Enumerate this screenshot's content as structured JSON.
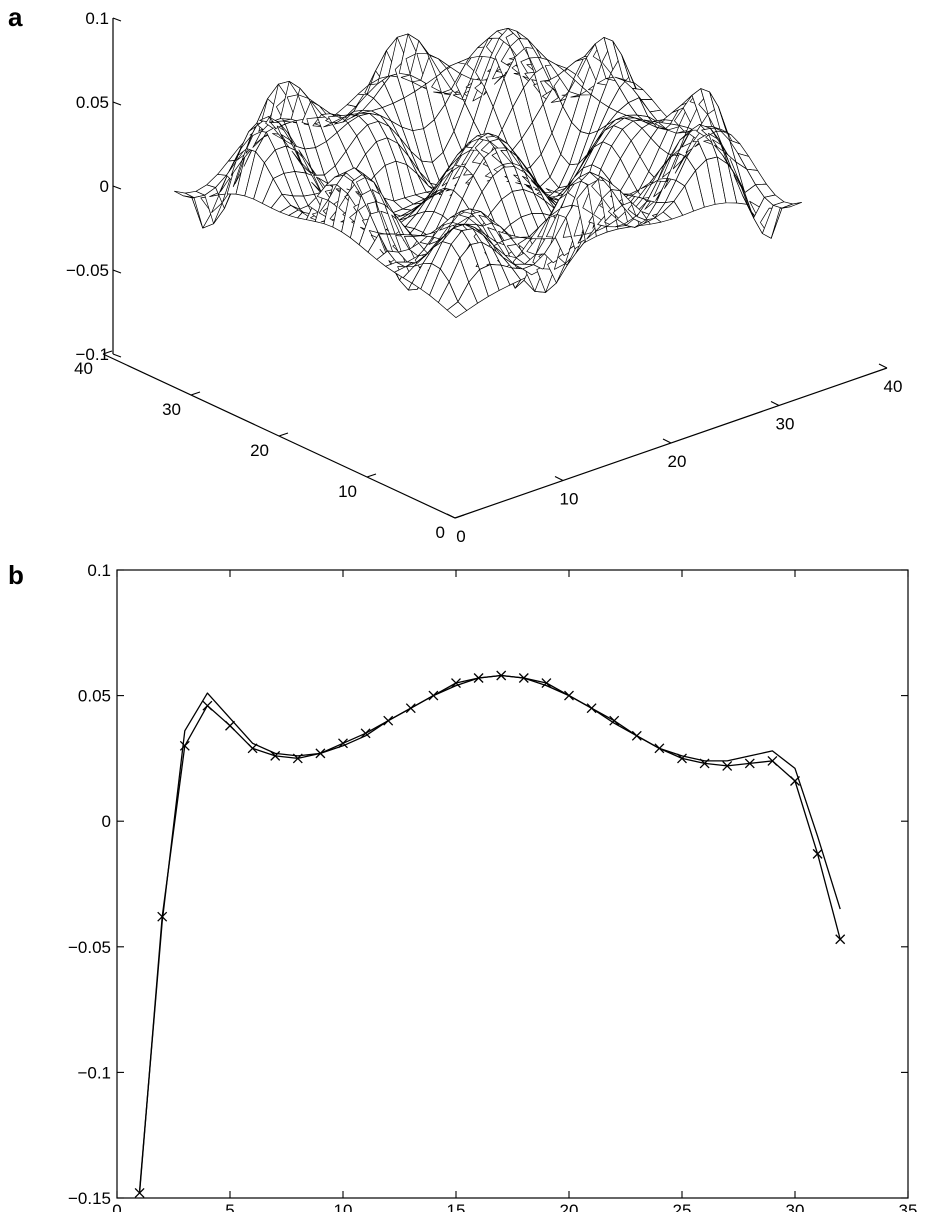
{
  "panels": {
    "a": {
      "label": "a"
    },
    "b": {
      "label": "b"
    }
  },
  "chart_data": [
    {
      "panel": "a",
      "type": "surface",
      "title": "",
      "xlabel": "",
      "ylabel": "",
      "zlabel": "",
      "xlim": [
        0,
        40
      ],
      "ylim": [
        0,
        40
      ],
      "zlim": [
        -0.1,
        0.1
      ],
      "x_ticks": [
        "0",
        "10",
        "20",
        "30",
        "40"
      ],
      "y_ticks": [
        "0",
        "10",
        "20",
        "30",
        "40"
      ],
      "z_ticks": [
        "−0.1",
        "−0.05",
        "0",
        "0.05",
        "0.1"
      ],
      "x_tick_values": [
        0,
        10,
        20,
        30,
        40
      ],
      "y_tick_values": [
        0,
        10,
        20,
        30,
        40
      ],
      "z_tick_values": [
        -0.1,
        -0.05,
        0,
        0.05,
        0.1
      ],
      "grid_size": 32,
      "style": "wireframe mesh, white faces with black edges",
      "grid": false
    },
    {
      "panel": "b",
      "type": "line",
      "title": "",
      "xlabel": "",
      "ylabel": "",
      "xlim": [
        0,
        35
      ],
      "ylim": [
        -0.15,
        0.1
      ],
      "x_ticks": [
        "0",
        "5",
        "10",
        "15",
        "20",
        "25",
        "30",
        "35"
      ],
      "y_ticks": [
        "−0.15",
        "−0.1",
        "−0.05",
        "0",
        "0.05",
        "0.1"
      ],
      "x_tick_values": [
        0,
        5,
        10,
        15,
        20,
        25,
        30,
        35
      ],
      "y_tick_values": [
        -0.15,
        -0.1,
        -0.05,
        0,
        0.05,
        0.1
      ],
      "grid": false,
      "legend": "none",
      "series": [
        {
          "marker": "none",
          "x": [
            1,
            2,
            3,
            4,
            5,
            6,
            7,
            8,
            9,
            10,
            11,
            12,
            13,
            14,
            15,
            16,
            17,
            18,
            19,
            20,
            21,
            22,
            23,
            24,
            25,
            26,
            27,
            28,
            29,
            30,
            31,
            32
          ],
          "y": [
            -0.147,
            -0.04,
            0.036,
            0.051,
            0.041,
            0.031,
            0.027,
            0.026,
            0.027,
            0.03,
            0.034,
            0.04,
            0.045,
            0.05,
            0.054,
            0.057,
            0.058,
            0.057,
            0.054,
            0.05,
            0.045,
            0.039,
            0.034,
            0.029,
            0.026,
            0.024,
            0.024,
            0.026,
            0.028,
            0.021,
            -0.006,
            -0.035
          ]
        },
        {
          "marker": "x",
          "x": [
            1,
            2,
            3,
            4,
            5,
            6,
            7,
            8,
            9,
            10,
            11,
            12,
            13,
            14,
            15,
            16,
            17,
            18,
            19,
            20,
            21,
            22,
            23,
            24,
            25,
            26,
            27,
            28,
            29,
            30,
            31,
            32
          ],
          "y": [
            -0.148,
            -0.038,
            0.03,
            0.046,
            0.038,
            0.029,
            0.026,
            0.025,
            0.027,
            0.031,
            0.035,
            0.04,
            0.045,
            0.05,
            0.055,
            0.057,
            0.058,
            0.057,
            0.055,
            0.05,
            0.045,
            0.04,
            0.034,
            0.029,
            0.025,
            0.023,
            0.022,
            0.023,
            0.024,
            0.016,
            -0.013,
            -0.047
          ]
        }
      ]
    }
  ]
}
